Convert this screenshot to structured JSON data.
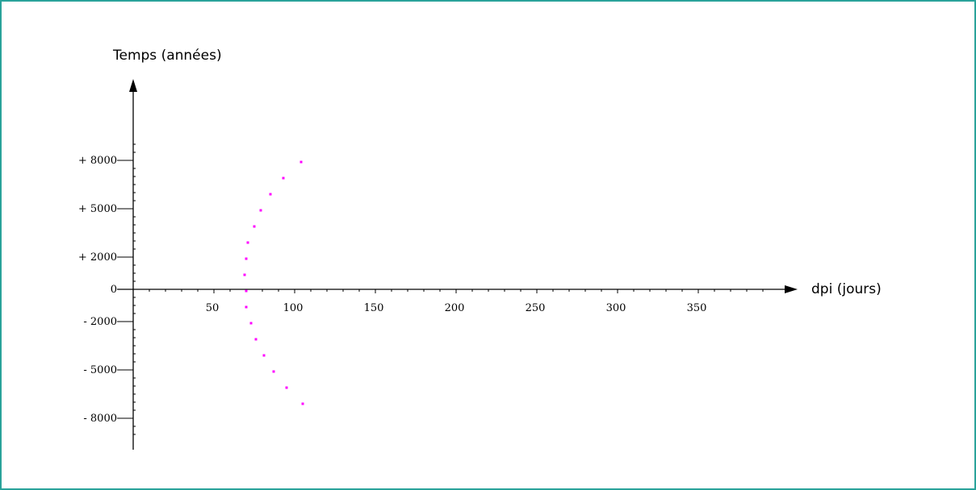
{
  "colors": {
    "frame_border": "#2aa39a",
    "axis": "#000000",
    "points": "#ff00ff"
  },
  "chart_data": {
    "type": "scatter",
    "title": "",
    "xlabel": "dpi (jours)",
    "ylabel": "Temps (années)",
    "xlim": [
      0,
      400
    ],
    "ylim": [
      -10000,
      10000
    ],
    "x_ticks": [
      50,
      100,
      150,
      200,
      250,
      300,
      350
    ],
    "x_tick_labels": [
      "50",
      "100",
      "150",
      "200",
      "250",
      "300",
      "350"
    ],
    "y_ticks": [
      8000,
      5000,
      2000,
      0,
      -2000,
      -5000,
      -8000
    ],
    "y_tick_labels": [
      "+ 8000",
      "+ 5000",
      "+ 2000",
      "0",
      "- 2000",
      "- 5000",
      "- 8000"
    ],
    "grid": false,
    "legend": "none",
    "series": [
      {
        "points": [
          {
            "x": 104,
            "y": 7900
          },
          {
            "x": 93,
            "y": 6900
          },
          {
            "x": 85,
            "y": 5900
          },
          {
            "x": 79,
            "y": 4900
          },
          {
            "x": 75,
            "y": 3900
          },
          {
            "x": 71,
            "y": 2900
          },
          {
            "x": 70,
            "y": 1900
          },
          {
            "x": 69,
            "y": 900
          },
          {
            "x": 70,
            "y": -100
          },
          {
            "x": 70,
            "y": -1100
          },
          {
            "x": 73,
            "y": -2100
          },
          {
            "x": 76,
            "y": -3100
          },
          {
            "x": 81,
            "y": -4100
          },
          {
            "x": 87,
            "y": -5100
          },
          {
            "x": 95,
            "y": -6100
          },
          {
            "x": 105,
            "y": -7100
          }
        ]
      }
    ]
  }
}
